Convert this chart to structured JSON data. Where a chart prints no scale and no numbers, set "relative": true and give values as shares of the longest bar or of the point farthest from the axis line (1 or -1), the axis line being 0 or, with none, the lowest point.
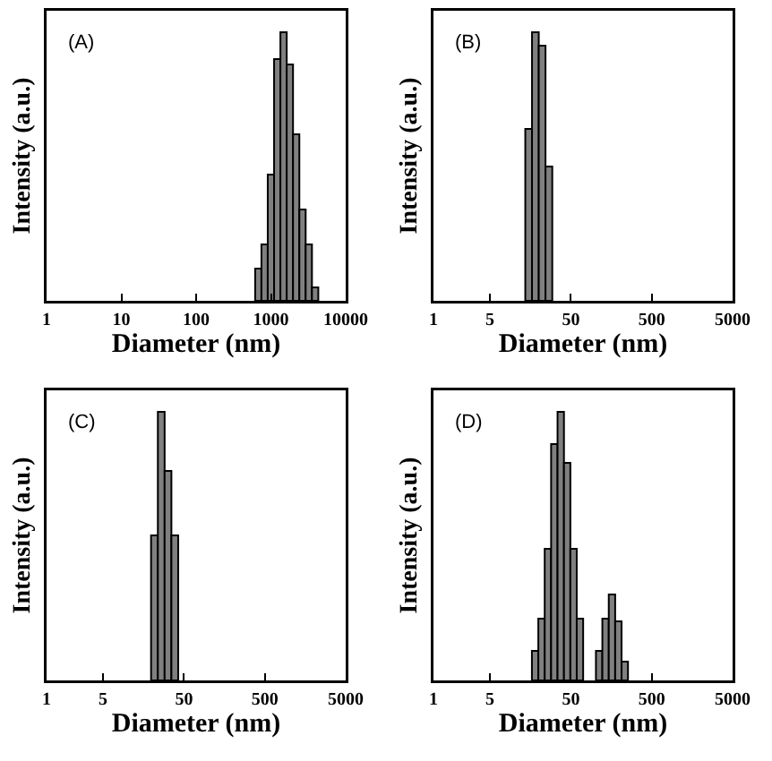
{
  "chart_data": [
    {
      "type": "bar",
      "annotations": [
        "(A)"
      ],
      "xlabel": "Diameter (nm)",
      "ylabel": "Intensity (a.u.)",
      "relative": true,
      "log": "x",
      "color": "#808080",
      "xlim": [
        1,
        10000
      ],
      "xticks": [
        1,
        10,
        100,
        1000,
        10000
      ],
      "x": [
        678,
        823,
        1000,
        1215,
        1476,
        1792,
        2177,
        2644,
        3211,
        3901
      ],
      "values": [
        0.12,
        0.21,
        0.47,
        0.9,
        1.0,
        0.88,
        0.62,
        0.34,
        0.21,
        0.05
      ]
    },
    {
      "type": "bar",
      "annotations": [
        "(B)"
      ],
      "xlabel": "Diameter (nm)",
      "ylabel": "Intensity (a.u.)",
      "relative": true,
      "log": "x",
      "color": "#808080",
      "xlim": [
        1,
        5000
      ],
      "xticks": [
        1,
        5,
        50,
        500,
        5000
      ],
      "x": [
        15.03,
        18.21,
        22.07,
        26.75
      ],
      "values": [
        0.64,
        1.0,
        0.95,
        0.5
      ]
    },
    {
      "type": "bar",
      "annotations": [
        "(C)"
      ],
      "xlabel": "Diameter (nm)",
      "ylabel": "Intensity (a.u.)",
      "relative": true,
      "log": "x",
      "color": "#808080",
      "xlim": [
        1,
        5000
      ],
      "xticks": [
        1,
        5,
        50,
        500,
        5000
      ],
      "x": [
        21.58,
        26.18,
        31.75,
        38.51
      ],
      "values": [
        0.54,
        1.0,
        0.78,
        0.54
      ]
    },
    {
      "type": "bar",
      "annotations": [
        "(D)"
      ],
      "xlabel": "Diameter (nm)",
      "ylabel": "Intensity (a.u.)",
      "relative": true,
      "log": "x",
      "color": "#808080",
      "xlim": [
        1,
        5000
      ],
      "xticks": [
        1,
        5,
        50,
        500,
        5000
      ],
      "x": [
        18.07,
        21.69,
        26.02,
        31.22,
        37.49,
        45.01,
        53.98,
        64.78,
        111.9,
        134.3,
        161.2,
        193.4,
        232.1
      ],
      "values": [
        0.11,
        0.23,
        0.49,
        0.88,
        1.0,
        0.81,
        0.49,
        0.23,
        0.11,
        0.23,
        0.32,
        0.22,
        0.07
      ]
    }
  ]
}
